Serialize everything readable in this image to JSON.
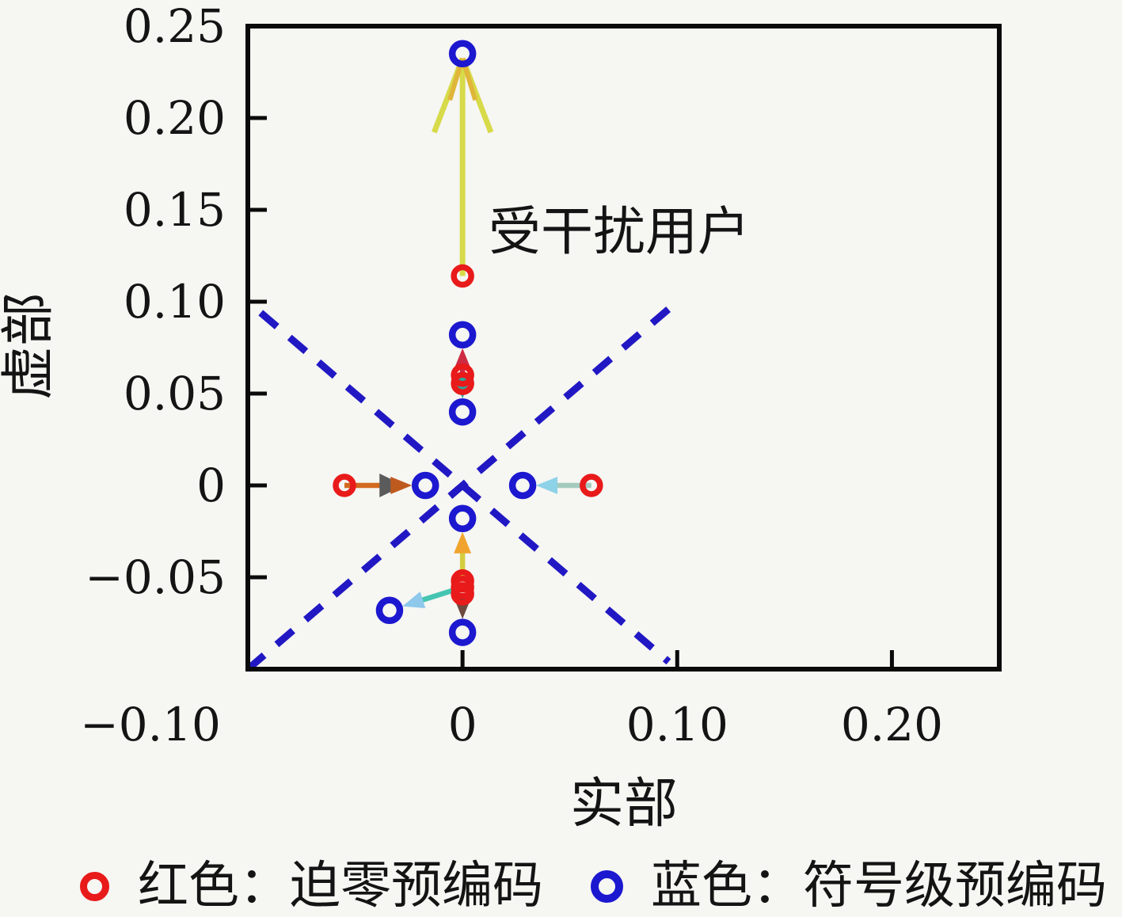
{
  "figure": {
    "background": "#f6f6f3",
    "annotation_text": "受干扰用户"
  },
  "chart_data": {
    "type": "scatter",
    "title": "",
    "xlabel": "实部",
    "ylabel": "虚部",
    "xlim": [
      -0.1,
      0.25
    ],
    "ylim": [
      -0.1,
      0.25
    ],
    "grid": false,
    "xticks": [
      {
        "value": -0.1,
        "label": "−0.10"
      },
      {
        "value": 0,
        "label": "0"
      },
      {
        "value": 0.1,
        "label": "0.10"
      },
      {
        "value": 0.2,
        "label": "0.20"
      }
    ],
    "yticks": [
      {
        "value": 0.25,
        "label": "0.25"
      },
      {
        "value": 0.2,
        "label": "0.20"
      },
      {
        "value": 0.15,
        "label": "0.15"
      },
      {
        "value": 0.1,
        "label": "0.10"
      },
      {
        "value": 0.05,
        "label": "0.05"
      },
      {
        "value": 0,
        "label": "0"
      },
      {
        "value": -0.05,
        "label": "−0.05"
      }
    ],
    "annotation": {
      "text": "受干扰用户",
      "x": 0.013,
      "y": 0.137
    },
    "series": [
      {
        "name": "红色：迫零预编码",
        "marker": "open-circle",
        "color": "#e81a1a",
        "points": [
          [
            0,
            0.114
          ],
          [
            0,
            0.06
          ],
          [
            0,
            0.0555
          ],
          [
            -0.055,
            0
          ],
          [
            0.06,
            0
          ],
          [
            0,
            -0.052
          ],
          [
            0,
            -0.0555
          ],
          [
            0,
            -0.059
          ]
        ]
      },
      {
        "name": "蓝色：符号级预编码",
        "marker": "open-circle",
        "color": "#1c18cf",
        "points": [
          [
            0,
            0.235
          ],
          [
            0,
            0.082
          ],
          [
            0,
            0.04
          ],
          [
            -0.0173,
            0
          ],
          [
            0.028,
            0
          ],
          [
            0,
            -0.018
          ],
          [
            -0.034,
            -0.068
          ],
          [
            0,
            -0.08
          ]
        ]
      }
    ],
    "arrows": [
      {
        "from": [
          0,
          0.114
        ],
        "to": [
          0,
          0.235
        ],
        "line_color": "#d7da49",
        "head_color": "#e0b63a",
        "style": "open-barb",
        "gap": 6
      },
      {
        "from": [
          0,
          0.06
        ],
        "to": [
          0,
          0.082
        ],
        "line_color": "#cd2b43",
        "head_color": "#cd2b43"
      },
      {
        "from": [
          0,
          0.0555
        ],
        "to": [
          0,
          0.04
        ],
        "line_color": "#2aa79d",
        "head_color": "#2aa79d"
      },
      {
        "from": [
          -0.055,
          0
        ],
        "to": [
          -0.0173,
          0
        ],
        "line_color": "#d2691e",
        "head_color": "#bf5a1f",
        "back_head_color": "#5b5b5b"
      },
      {
        "from": [
          0.06,
          0
        ],
        "to": [
          0.028,
          0
        ],
        "line_color": "#a4cabe",
        "head_color": "#8ed2e8"
      },
      {
        "from": [
          0,
          -0.052
        ],
        "to": [
          0,
          -0.018
        ],
        "line_color": "#d5cd40",
        "head_color": "#f0a42e"
      },
      {
        "from": [
          0,
          -0.0555
        ],
        "to": [
          -0.034,
          -0.068
        ],
        "line_color": "#45c5b1",
        "head_color": "#8ec9ec"
      },
      {
        "from": [
          0,
          -0.059
        ],
        "to": [
          0,
          -0.08
        ],
        "line_color": "#3b3b3b",
        "head_color": "#6e4a3e"
      }
    ],
    "diagonals": [
      {
        "from": [
          -0.094,
          0.094
        ],
        "to": [
          0.096,
          -0.096
        ],
        "color": "#2118c4"
      },
      {
        "from": [
          -0.1,
          -0.1
        ],
        "to": [
          0.099,
          0.099
        ],
        "color": "#2118c4"
      }
    ],
    "legend": [
      {
        "marker_color": "#e81a1a",
        "label": "红色：迫零预编码"
      },
      {
        "marker_color": "#1c18cf",
        "label": "蓝色：符号级预编码"
      }
    ],
    "legend_position": "bottom"
  }
}
